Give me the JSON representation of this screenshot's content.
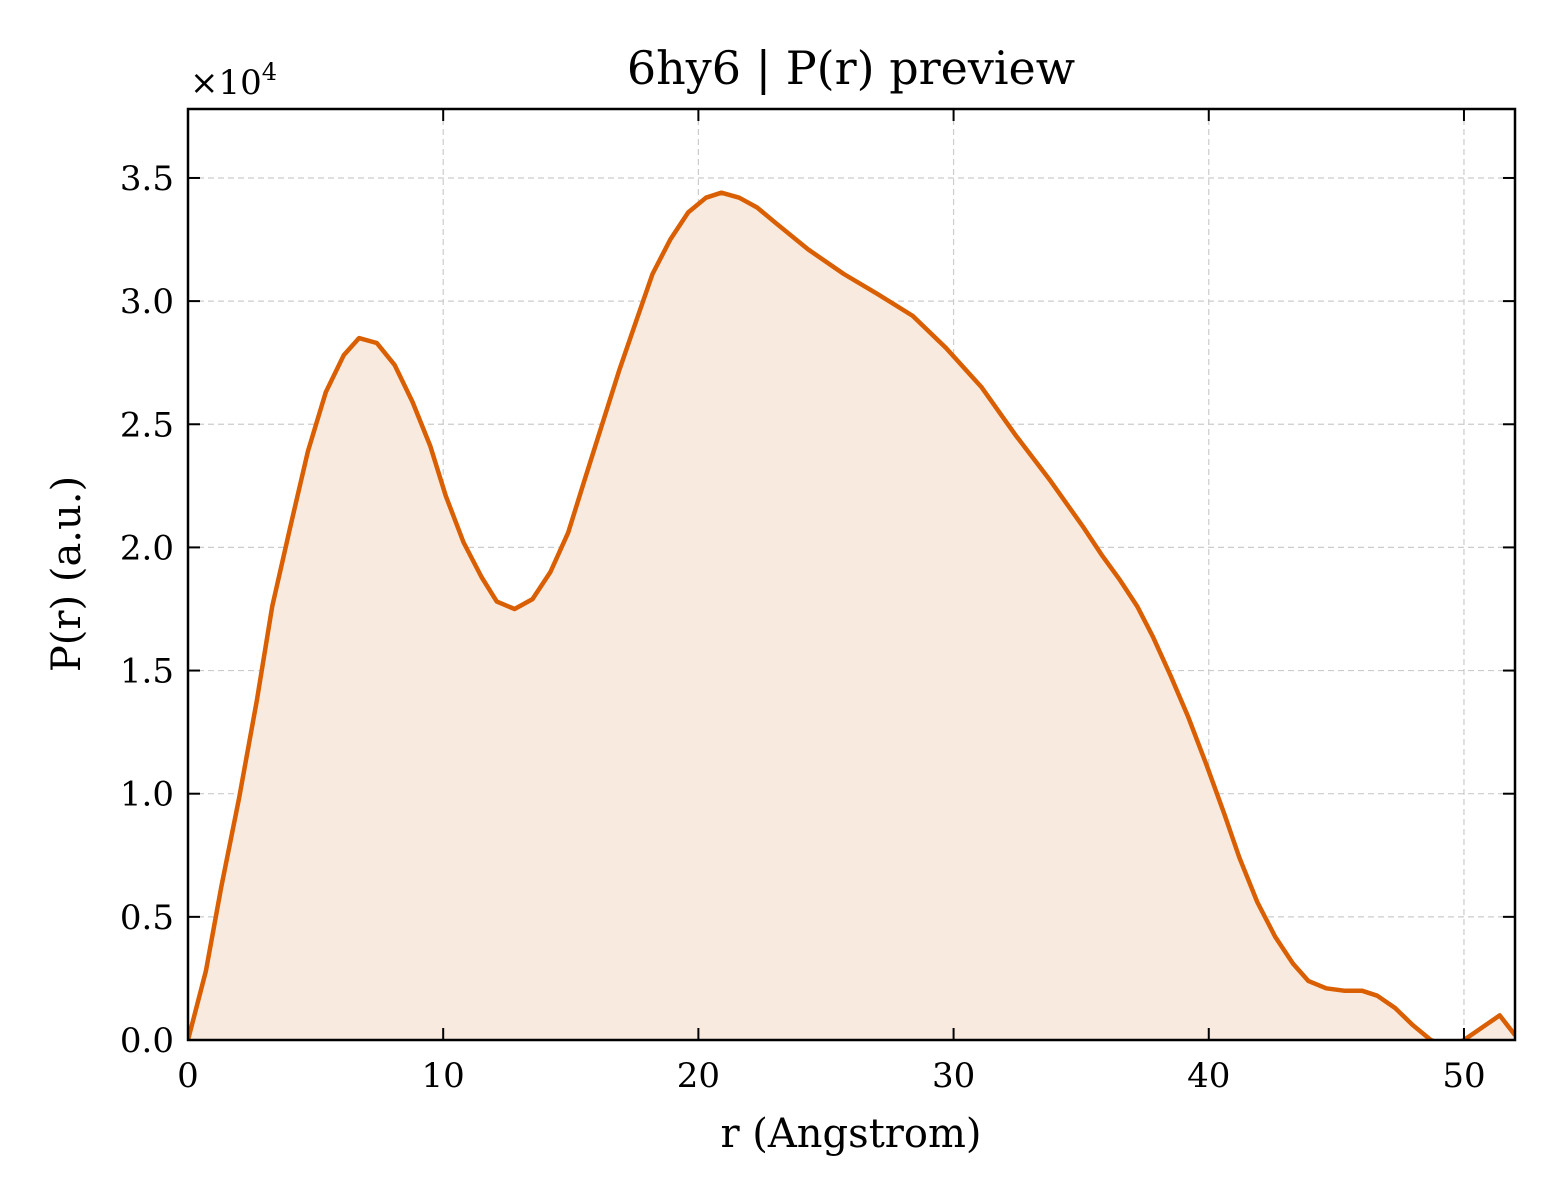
{
  "chart_data": {
    "type": "area",
    "title": "6hy6 | P(r) preview",
    "xlabel": "r (Angstrom)",
    "ylabel": "P(r) (a.u.)",
    "y_multiplier": {
      "base": "×10",
      "exponent": "4"
    },
    "xlim": [
      0,
      52
    ],
    "ylim": [
      0,
      3.78
    ],
    "xticks": [
      0,
      10,
      20,
      30,
      40,
      50
    ],
    "xtick_labels": [
      "0",
      "10",
      "20",
      "30",
      "40",
      "50"
    ],
    "yticks": [
      0,
      0.5,
      1.0,
      1.5,
      2.0,
      2.5,
      3.0,
      3.5
    ],
    "ytick_labels": [
      "0.0",
      "0.5",
      "1.0",
      "1.5",
      "2.0",
      "2.5",
      "3.0",
      "3.5"
    ],
    "grid": true,
    "line_color": "#d95f02",
    "fill_color": "#f9eadf",
    "series": [
      {
        "x": [
          0,
          0.7,
          1.3,
          2.0,
          2.7,
          3.3,
          4.0,
          4.7,
          5.4,
          6.1,
          6.7,
          7.4,
          8.1,
          8.8,
          9.5,
          10.1,
          10.8,
          11.5,
          12.1,
          12.8,
          13.5,
          14.2,
          14.9,
          15.5,
          16.2,
          16.9,
          17.6,
          18.2,
          18.9,
          19.6,
          20.3,
          20.9,
          21.6,
          22.3,
          23.0,
          24.3,
          25.7,
          27.0,
          28.4,
          29.7,
          31.1,
          32.4,
          33.8,
          35.1,
          35.8,
          36.5,
          37.2,
          37.8,
          38.5,
          39.2,
          39.9,
          40.6,
          41.2,
          41.9,
          42.6,
          43.3,
          43.9,
          44.6,
          45.3,
          46.0,
          46.6,
          47.3,
          48.0,
          48.7,
          49.4,
          50.0,
          50.7,
          51.4,
          52.0
        ],
        "y": [
          0,
          0.28,
          0.62,
          0.98,
          1.38,
          1.76,
          2.08,
          2.39,
          2.63,
          2.78,
          2.85,
          2.83,
          2.74,
          2.59,
          2.41,
          2.21,
          2.02,
          1.88,
          1.78,
          1.75,
          1.79,
          1.9,
          2.06,
          2.26,
          2.49,
          2.72,
          2.93,
          3.11,
          3.25,
          3.36,
          3.42,
          3.44,
          3.42,
          3.38,
          3.32,
          3.21,
          3.11,
          3.03,
          2.94,
          2.81,
          2.65,
          2.46,
          2.27,
          2.08,
          1.97,
          1.87,
          1.76,
          1.64,
          1.48,
          1.31,
          1.12,
          0.92,
          0.74,
          0.56,
          0.42,
          0.31,
          0.24,
          0.21,
          0.2,
          0.2,
          0.18,
          0.13,
          0.06,
          0.0,
          -0.03,
          0.0,
          0.05,
          0.1,
          0.02
        ]
      }
    ]
  }
}
